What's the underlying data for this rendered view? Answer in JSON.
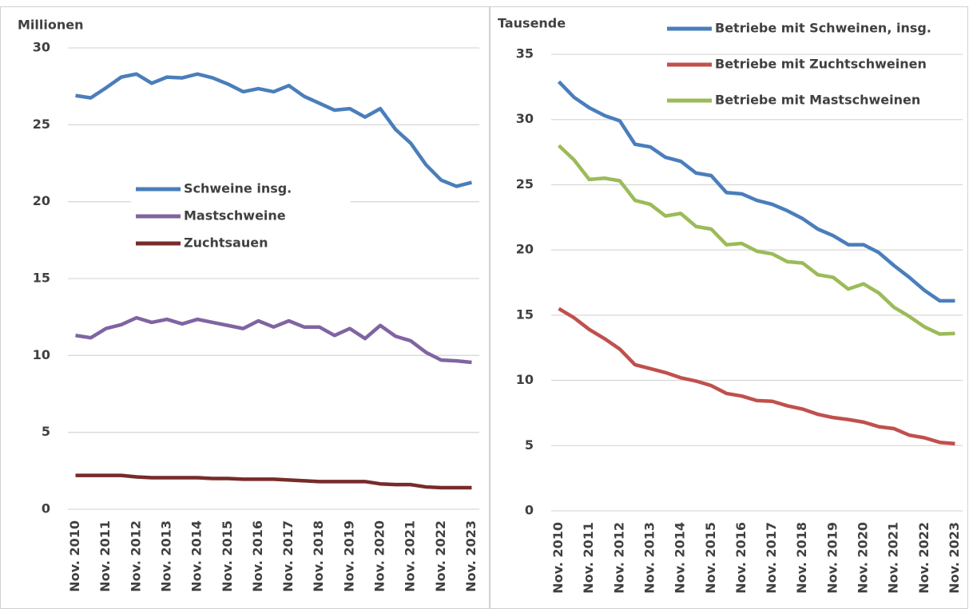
{
  "chart_data": [
    {
      "type": "line",
      "y_label": "Millionen",
      "categories": [
        "Nov. 2010",
        null,
        "Nov. 2011",
        null,
        "Nov. 2012",
        null,
        "Nov. 2013",
        null,
        "Nov. 2014",
        null,
        "Nov. 2015",
        null,
        "Nov. 2016",
        null,
        "Nov. 2017",
        null,
        "Nov. 2018",
        null,
        "Nov. 2019",
        null,
        "Nov. 2020",
        null,
        "Nov. 2021",
        null,
        "Nov. 2022",
        null,
        "Nov. 2023"
      ],
      "series": [
        {
          "name": "Schweine insg.",
          "color": "#4a7ebb",
          "values": [
            26.9,
            26.75,
            27.4,
            28.1,
            28.3,
            27.7,
            28.1,
            28.05,
            28.3,
            28.05,
            27.65,
            27.15,
            27.35,
            27.15,
            27.55,
            26.85,
            26.4,
            25.95,
            26.05,
            25.5,
            26.05,
            24.7,
            23.8,
            22.4,
            21.4,
            21.0,
            21.25
          ]
        },
        {
          "name": "Mastschweine",
          "color": "#8064a2",
          "values": [
            11.3,
            11.15,
            11.75,
            12.0,
            12.45,
            12.15,
            12.35,
            12.05,
            12.35,
            12.15,
            11.95,
            11.75,
            12.25,
            11.85,
            12.25,
            11.85,
            11.85,
            11.3,
            11.75,
            11.1,
            11.95,
            11.25,
            10.95,
            10.2,
            9.7,
            9.65,
            9.55
          ]
        },
        {
          "name": "Zuchtsauen",
          "color": "#772c2a",
          "values": [
            2.2,
            2.2,
            2.2,
            2.2,
            2.1,
            2.05,
            2.05,
            2.05,
            2.05,
            2.0,
            2.0,
            1.95,
            1.95,
            1.95,
            1.9,
            1.85,
            1.8,
            1.8,
            1.8,
            1.8,
            1.65,
            1.6,
            1.6,
            1.45,
            1.4,
            1.4,
            1.4
          ]
        }
      ],
      "ylim": [
        0,
        30
      ],
      "yticks": [
        0,
        5,
        10,
        15,
        20,
        25,
        30
      ],
      "grid": true,
      "legend_position": "center"
    },
    {
      "type": "line",
      "y_label": "Tausende",
      "categories": [
        "Nov. 2010",
        null,
        "Nov. 2011",
        null,
        "Nov. 2012",
        null,
        "Nov. 2013",
        null,
        "Nov. 2014",
        null,
        "Nov. 2015",
        null,
        "Nov. 2016",
        null,
        "Nov. 2017",
        null,
        "Nov. 2018",
        null,
        "Nov. 2019",
        null,
        "Nov. 2020",
        null,
        "Nov. 2021",
        null,
        "Nov. 2022",
        null,
        "Nov. 2023"
      ],
      "series": [
        {
          "name": "Betriebe mit Schweinen, insg.",
          "color": "#4a7ebb",
          "values": [
            32.9,
            31.7,
            30.9,
            30.3,
            29.9,
            28.1,
            27.9,
            27.1,
            26.8,
            25.9,
            25.7,
            24.4,
            24.3,
            23.8,
            23.5,
            23.0,
            22.4,
            21.6,
            21.1,
            20.4,
            20.4,
            19.8,
            18.8,
            17.9,
            16.9,
            16.1,
            16.1
          ]
        },
        {
          "name": "Betriebe mit Zuchtschweinen",
          "color": "#c0504d",
          "values": [
            15.5,
            14.8,
            13.9,
            13.2,
            12.4,
            11.2,
            10.9,
            10.6,
            10.2,
            9.95,
            9.6,
            9.0,
            8.8,
            8.45,
            8.4,
            8.05,
            7.8,
            7.4,
            7.15,
            7.0,
            6.8,
            6.45,
            6.3,
            5.8,
            5.6,
            5.25,
            5.15
          ]
        },
        {
          "name": "Betriebe mit Mastschweinen",
          "color": "#9bbb59",
          "values": [
            28.0,
            26.9,
            25.4,
            25.5,
            25.3,
            23.8,
            23.5,
            22.6,
            22.8,
            21.8,
            21.6,
            20.4,
            20.5,
            19.9,
            19.7,
            19.1,
            19.0,
            18.1,
            17.9,
            17.0,
            17.4,
            16.7,
            15.6,
            14.9,
            14.1,
            13.55,
            13.6
          ]
        }
      ],
      "ylim": [
        0,
        35
      ],
      "yticks": [
        0,
        5,
        10,
        15,
        20,
        25,
        30,
        35
      ],
      "grid": true,
      "legend_position": "top-right"
    }
  ]
}
